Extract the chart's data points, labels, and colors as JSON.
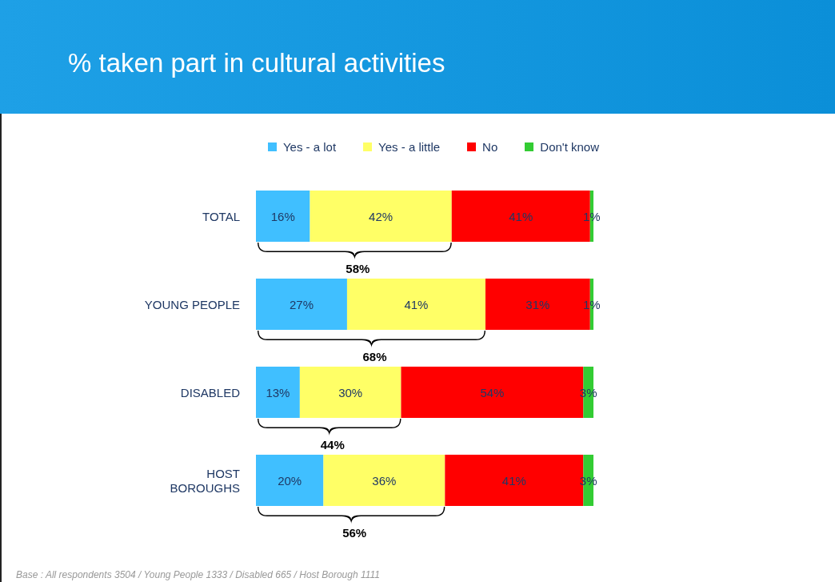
{
  "chart_data": {
    "type": "bar",
    "orientation": "horizontal",
    "stacked": true,
    "title": "% taken part in cultural activities",
    "categories": [
      "TOTAL",
      "YOUNG PEOPLE",
      "DISABLED",
      "HOST BOROUGHS"
    ],
    "series": [
      {
        "name": "Yes - a lot",
        "color": "#40bfff",
        "values": [
          16,
          27,
          13,
          20
        ],
        "value_labels": [
          "16%",
          "27%",
          "13%",
          "20%"
        ]
      },
      {
        "name": "Yes - a little",
        "color": "#ffff66",
        "values": [
          42,
          41,
          30,
          36
        ],
        "value_labels": [
          "42%",
          "41%",
          "30%",
          "36%"
        ]
      },
      {
        "name": "No",
        "color": "#ff0000",
        "values": [
          41,
          31,
          54,
          41
        ],
        "value_labels": [
          "41%",
          "31%",
          "54%",
          "41%"
        ]
      },
      {
        "name": "Don't know",
        "color": "#33cc33",
        "values": [
          1,
          1,
          3,
          3
        ],
        "value_labels": [
          "1%",
          "1%",
          "3%",
          "3%"
        ]
      }
    ],
    "annotations": [
      "58%",
      "68%",
      "44%",
      "56%",
      "Base : All respondents 3504 / Young People 1333 / Disabled 665 / Host Borough 1111"
    ],
    "legend": "top"
  }
}
